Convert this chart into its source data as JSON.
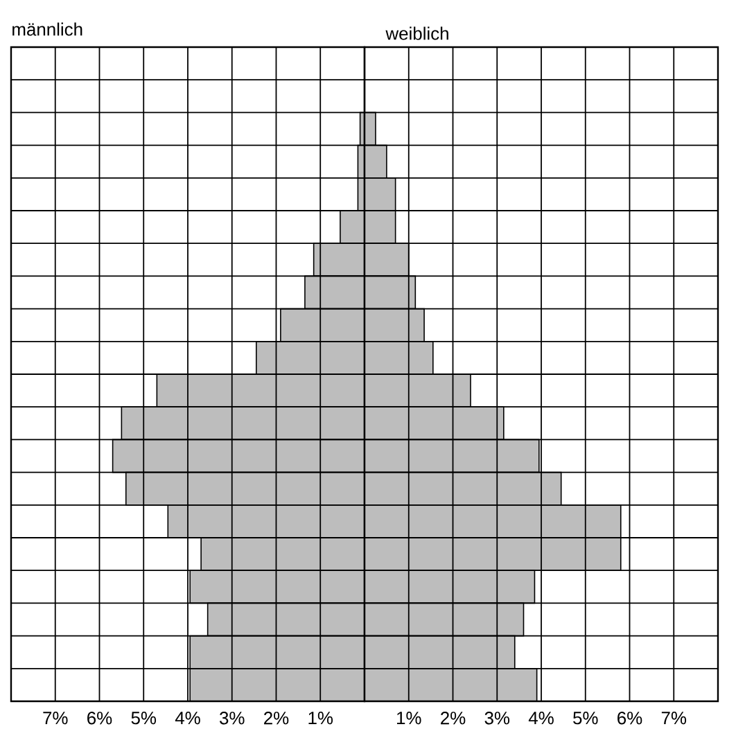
{
  "chart_data": [
    {
      "type": "bar",
      "orientation": "horizontal",
      "title": "männlich",
      "categories": [
        null,
        null,
        null,
        null,
        null,
        null,
        null,
        null,
        null,
        null,
        null,
        null,
        null,
        null,
        null,
        null,
        null,
        null,
        null,
        null
      ],
      "series": [
        {
          "color": "#bdbdbd",
          "values": [
            null,
            null,
            0.1,
            0.15,
            0.15,
            0.55,
            1.15,
            1.35,
            1.9,
            2.45,
            4.7,
            5.5,
            5.7,
            5.4,
            4.45,
            3.7,
            3.95,
            3.55,
            3.95,
            3.95
          ]
        }
      ],
      "xlim": [
        8,
        0
      ],
      "xticks": [
        {
          "value": 7,
          "label": "7%"
        },
        {
          "value": 6,
          "label": "6%"
        },
        {
          "value": 5,
          "label": "5%"
        },
        {
          "value": 4,
          "label": "4%"
        },
        {
          "value": 3,
          "label": "3%"
        },
        {
          "value": 2,
          "label": "2%"
        },
        {
          "value": 1,
          "label": "1%"
        }
      ],
      "grid": true
    },
    {
      "type": "bar",
      "orientation": "horizontal",
      "title": "weiblich",
      "categories": [
        null,
        null,
        null,
        null,
        null,
        null,
        null,
        null,
        null,
        null,
        null,
        null,
        null,
        null,
        null,
        null,
        null,
        null,
        null,
        null
      ],
      "series": [
        {
          "color": "#bdbdbd",
          "values": [
            null,
            null,
            0.25,
            0.5,
            0.7,
            0.7,
            1.0,
            1.15,
            1.35,
            1.55,
            2.4,
            3.15,
            3.95,
            4.45,
            5.8,
            5.8,
            3.85,
            3.6,
            3.4,
            3.9
          ]
        }
      ],
      "xlim": [
        0,
        8
      ],
      "xticks": [
        {
          "value": 1,
          "label": "1%"
        },
        {
          "value": 2,
          "label": "2%"
        },
        {
          "value": 3,
          "label": "3%"
        },
        {
          "value": 4,
          "label": "4%"
        },
        {
          "value": 5,
          "label": "5%"
        },
        {
          "value": 6,
          "label": "6%"
        },
        {
          "value": 7,
          "label": "7%"
        }
      ],
      "grid": true
    }
  ]
}
